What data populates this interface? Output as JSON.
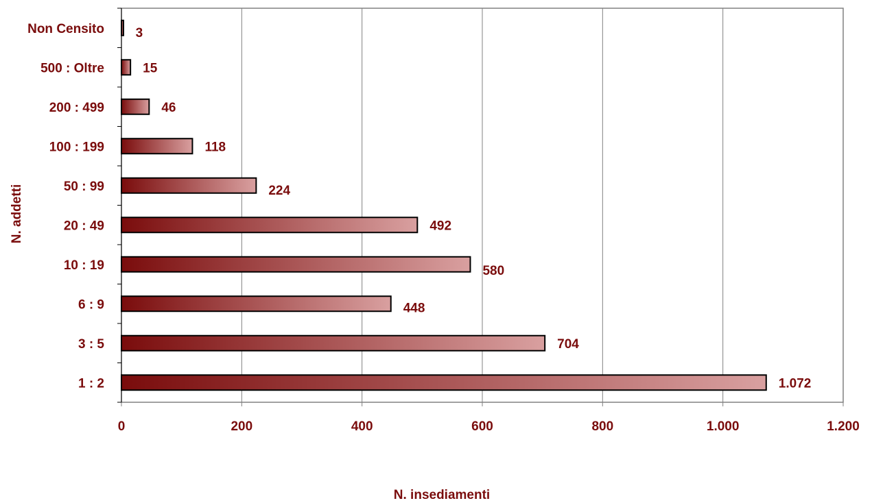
{
  "chart_data": {
    "type": "bar",
    "orientation": "horizontal",
    "categories": [
      "Non Censito",
      "500 : Oltre",
      "200 : 499",
      "100 : 199",
      "50 : 99",
      "20 : 49",
      "10 : 19",
      "6 : 9",
      "3 : 5",
      "1 : 2"
    ],
    "values": [
      3,
      15,
      46,
      118,
      224,
      492,
      580,
      448,
      704,
      1072
    ],
    "value_labels": [
      "3",
      "15",
      "46",
      "118",
      "224",
      "492",
      "580",
      "448",
      "704",
      "1.072"
    ],
    "xlabel": "N. insediamenti",
    "ylabel": "N. addetti",
    "xlim": [
      0,
      1200
    ],
    "xticks": [
      0,
      200,
      400,
      600,
      800,
      1000,
      1200
    ],
    "xtick_labels": [
      "0",
      "200",
      "400",
      "600",
      "800",
      "1.000",
      "1.200"
    ],
    "grid": "vertical",
    "legend": "none",
    "colors": {
      "text": "#7a0c0c",
      "bar_gradient_start": "#7a0c0c",
      "bar_gradient_end": "#d9a0a0",
      "bar_outline": "#000000",
      "grid": "#808080",
      "frame": "#808080"
    }
  }
}
